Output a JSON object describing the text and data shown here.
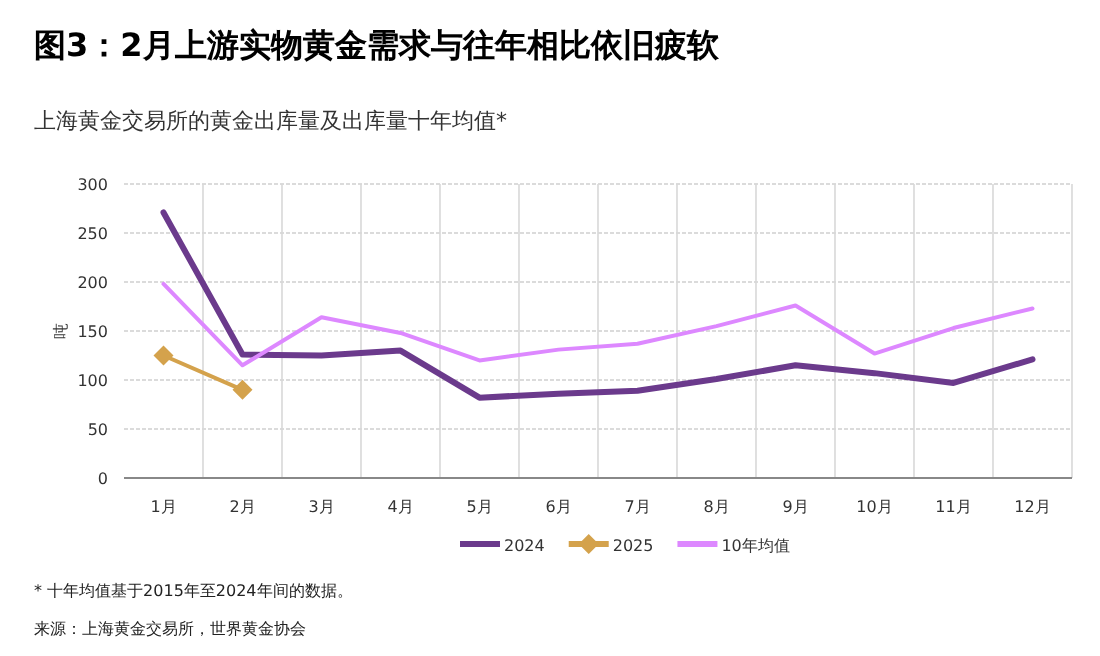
{
  "chart_data": {
    "type": "line",
    "title": "图3：2月上游实物黄金需求与往年相比依旧疲软",
    "subtitle": "上海黄金交易所的黄金出库量及出库量十年均值*",
    "ylabel": "吨",
    "categories": [
      "1月",
      "2月",
      "3月",
      "4月",
      "5月",
      "6月",
      "7月",
      "8月",
      "9月",
      "10月",
      "11月",
      "12月"
    ],
    "series": [
      {
        "name": "2024",
        "color": "#6b3a8c",
        "values": [
          271,
          126,
          125,
          130,
          82,
          86,
          89,
          101,
          115,
          107,
          97,
          121
        ]
      },
      {
        "name": "2025",
        "color": "#d4a24c",
        "marker": "diamond",
        "values": [
          125,
          90,
          null,
          null,
          null,
          null,
          null,
          null,
          null,
          null,
          null,
          null
        ]
      },
      {
        "name": "10年均值",
        "color": "#dd88ff",
        "values": [
          198,
          115,
          164,
          148,
          120,
          131,
          137,
          155,
          176,
          127,
          153,
          173
        ]
      }
    ],
    "ylim": [
      0,
      300
    ],
    "yticks": [
      0,
      50,
      100,
      150,
      200,
      250,
      300
    ],
    "grid": true,
    "legend": "bottom",
    "annotations": [
      "* 十年均值基于2015年至2024年间的数据。",
      "来源：上海黄金交易所，世界黄金协会"
    ]
  }
}
